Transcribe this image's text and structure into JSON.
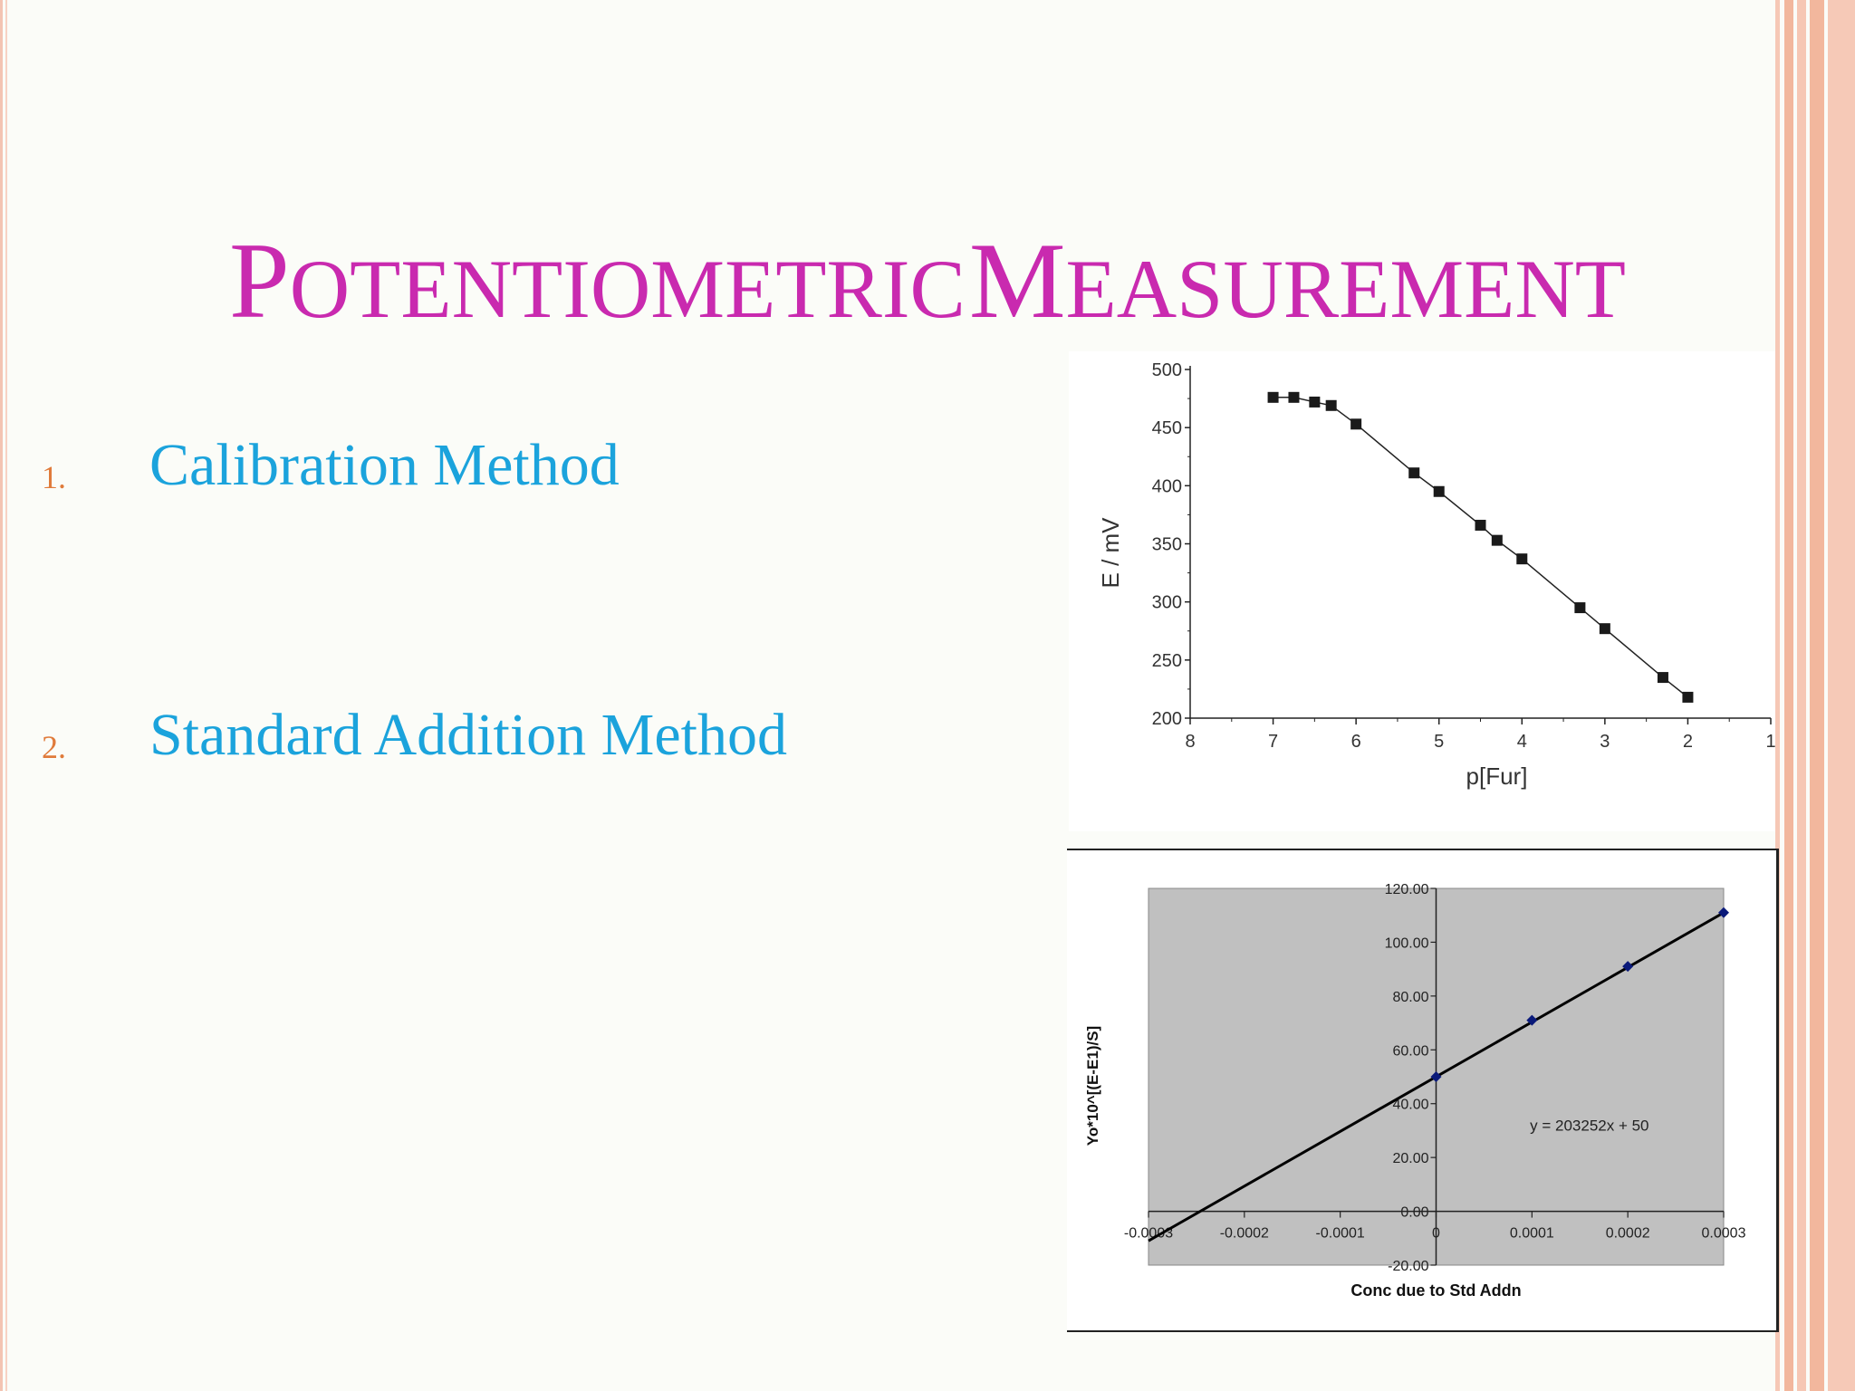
{
  "slide": {
    "title": {
      "word1_initial": "P",
      "word1_rest": "OTENTIOMETRIC",
      "word2_initial": "M",
      "word2_rest": "EASUREMENT"
    },
    "items": [
      {
        "number": "1.",
        "label": "Calibration Method"
      },
      {
        "number": "2.",
        "label": "Standard Addition Method"
      }
    ]
  },
  "colors": {
    "title": "#c92aaf",
    "item_text": "#1ba3dc",
    "item_number": "#e07b3b",
    "plot_area_gray": "#c0c0c0",
    "marker_navy": "#0a1a7a"
  },
  "chart_data": [
    {
      "type": "line",
      "xlabel": "p[Fur]",
      "ylabel": "E / mV",
      "xlim": [
        8,
        1
      ],
      "ylim": [
        200,
        500
      ],
      "x_reversed": true,
      "x_ticks": [
        "8",
        "7",
        "6",
        "5",
        "4",
        "3",
        "2",
        "1"
      ],
      "y_ticks": [
        "200",
        "250",
        "300",
        "350",
        "400",
        "450",
        "500"
      ],
      "grid": false,
      "marker": "square",
      "series": [
        {
          "points": [
            [
              7.0,
              476
            ],
            [
              6.75,
              476
            ],
            [
              6.5,
              472
            ],
            [
              6.3,
              469
            ],
            [
              6.0,
              453
            ],
            [
              5.3,
              411
            ],
            [
              5.0,
              395
            ],
            [
              4.5,
              366
            ],
            [
              4.3,
              353
            ],
            [
              4.0,
              337
            ],
            [
              3.3,
              295
            ],
            [
              3.0,
              277
            ],
            [
              2.3,
              235
            ],
            [
              2.0,
              218
            ]
          ]
        }
      ]
    },
    {
      "type": "scatter",
      "xlabel": "Conc due to Std Addn",
      "ylabel": "Yo*10^[(E-E1)/S]",
      "xlim": [
        -0.0003,
        0.0003
      ],
      "ylim": [
        -20,
        120
      ],
      "x_ticks": [
        "-0.0003",
        "-0.0002",
        "-0.0001",
        "0",
        "0.0001",
        "0.0002",
        "0.0003"
      ],
      "y_ticks": [
        "-20.00",
        "0.00",
        "20.00",
        "40.00",
        "60.00",
        "80.00",
        "100.00",
        "120.00"
      ],
      "grid": false,
      "plot_area": "gray",
      "marker": "diamond",
      "series": [
        {
          "x": [
            0,
            0.0001,
            0.0002,
            0.0003
          ],
          "y": [
            50,
            71,
            91,
            111
          ]
        }
      ],
      "trendline": {
        "slope": 203252,
        "intercept": 50,
        "x_from": -0.0003,
        "x_to": 0.0003
      },
      "annotation": "y = 203252x + 50"
    }
  ]
}
